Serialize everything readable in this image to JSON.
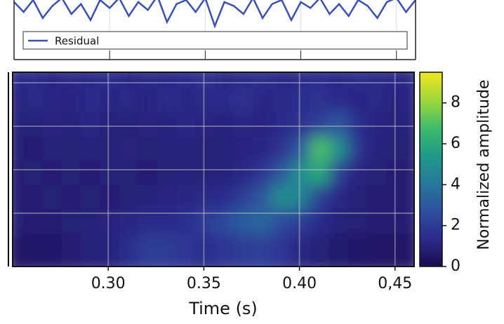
{
  "chart_data": [
    {
      "type": "line",
      "legend": "upper-left",
      "xlim": [
        0.25,
        0.46
      ],
      "ylim": [
        -1,
        0.4
      ],
      "x": [
        0.25,
        0.255,
        0.26,
        0.265,
        0.27,
        0.275,
        0.28,
        0.285,
        0.29,
        0.295,
        0.3,
        0.305,
        0.31,
        0.315,
        0.32,
        0.325,
        0.33,
        0.335,
        0.34,
        0.345,
        0.35,
        0.355,
        0.36,
        0.365,
        0.37,
        0.375,
        0.38,
        0.385,
        0.39,
        0.395,
        0.4,
        0.405,
        0.41,
        0.415,
        0.42,
        0.425,
        0.43,
        0.435,
        0.44,
        0.445,
        0.45,
        0.455,
        0.46
      ],
      "series": [
        {
          "name": "Residual",
          "color": "#3a4fb4",
          "values": [
            0.3,
            -0.2,
            0.4,
            -0.5,
            0.1,
            0.5,
            -0.3,
            0.2,
            -0.6,
            0.4,
            0.0,
            0.5,
            -0.4,
            0.3,
            -0.1,
            0.6,
            -0.7,
            0.2,
            0.4,
            -0.2,
            0.5,
            -0.9,
            0.3,
            0.1,
            -0.3,
            0.5,
            -0.5,
            0.2,
            0.4,
            -0.6,
            0.3,
            0.0,
            0.5,
            -0.3,
            0.2,
            -0.4,
            0.4,
            0.1,
            -0.5,
            0.3,
            0.5,
            -0.2,
            0.4
          ]
        }
      ]
    },
    {
      "type": "heatmap",
      "xlabel": "Time (s)",
      "colorbar_label": "Normalized amplitude",
      "xlim": [
        0.25,
        0.46
      ],
      "xticks": [
        {
          "value": 0.3,
          "label": "0.30"
        },
        {
          "value": 0.35,
          "label": "0.35"
        },
        {
          "value": 0.4,
          "label": "0.40"
        },
        {
          "value": 0.45,
          "label": "0,45"
        }
      ],
      "clim": [
        0,
        9.5
      ],
      "cticks": [
        0,
        2,
        4,
        6,
        8
      ],
      "grid": true,
      "colormap": [
        "#1a0b4f",
        "#2c2a8c",
        "#2f4fa0",
        "#26799a",
        "#1f9a88",
        "#3fbc6c",
        "#9fd83a",
        "#f2e51f"
      ],
      "z": [
        [
          1.2,
          1.4,
          1.1,
          1.3,
          1.2,
          1.5,
          1.1,
          1.3,
          1.2,
          1.4,
          1.6,
          1.2,
          1.3,
          1.5,
          1.2,
          1.3,
          1.4,
          1.2,
          1.5,
          1.3,
          1.2
        ],
        [
          1.1,
          1.3,
          1.2,
          1.1,
          1.4,
          1.2,
          1.3,
          1.1,
          1.5,
          1.2,
          1.3,
          1.4,
          1.6,
          1.2,
          1.3,
          1.5,
          1.6,
          1.4,
          1.2,
          1.3,
          1.1
        ],
        [
          1.0,
          0.9,
          1.1,
          1.0,
          1.2,
          1.0,
          0.9,
          1.1,
          1.0,
          1.2,
          1.1,
          1.0,
          1.2,
          1.1,
          1.3,
          1.6,
          2.2,
          3.0,
          1.5,
          1.1,
          1.0
        ],
        [
          0.9,
          0.8,
          1.0,
          0.9,
          1.0,
          0.9,
          1.1,
          0.9,
          1.0,
          1.0,
          0.9,
          1.0,
          1.1,
          1.2,
          1.6,
          3.0,
          7.0,
          5.0,
          1.6,
          1.0,
          0.9
        ],
        [
          0.8,
          0.9,
          0.8,
          0.9,
          0.8,
          1.0,
          0.9,
          0.8,
          0.9,
          1.0,
          0.9,
          1.0,
          1.2,
          1.8,
          3.0,
          5.0,
          6.0,
          2.0,
          1.1,
          0.9,
          0.8
        ],
        [
          0.8,
          0.8,
          0.9,
          0.8,
          0.9,
          0.8,
          0.9,
          1.0,
          1.1,
          1.2,
          1.3,
          1.4,
          2.0,
          3.0,
          5.0,
          4.5,
          2.0,
          1.2,
          0.9,
          0.8,
          0.8
        ],
        [
          0.9,
          0.8,
          0.8,
          0.9,
          1.0,
          1.1,
          1.2,
          1.3,
          1.4,
          1.5,
          2.0,
          2.5,
          3.2,
          3.5,
          2.5,
          2.0,
          1.4,
          1.0,
          0.9,
          0.8,
          0.8
        ],
        [
          0.5,
          0.6,
          0.6,
          0.8,
          1.0,
          1.0,
          1.5,
          2.0,
          2.0,
          1.8,
          1.5,
          1.8,
          2.0,
          2.2,
          1.8,
          1.2,
          0.9,
          0.7,
          0.6,
          0.5,
          0.5
        ]
      ]
    }
  ]
}
